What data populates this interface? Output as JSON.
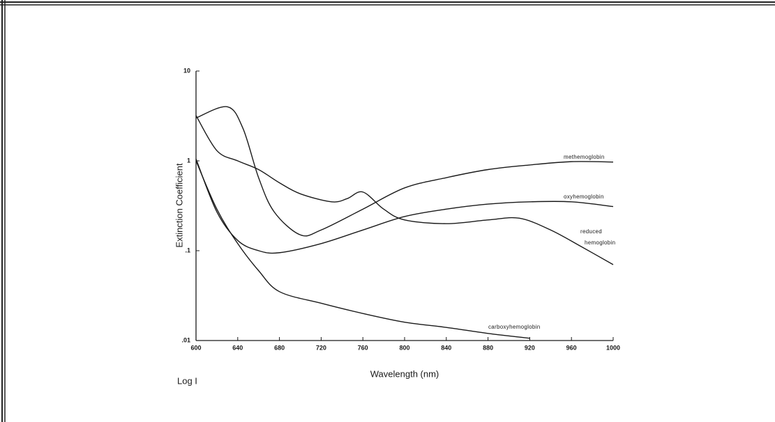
{
  "chart_data": {
    "type": "line",
    "x_label": "Wavelength (nm)",
    "y_label": "Extinction Coefficient",
    "annotation": "Log I",
    "log_y": true,
    "color": "#1a1a1a",
    "xlim": [
      600,
      1000
    ],
    "ylim": [
      0.01,
      10
    ],
    "xticks": [
      600,
      640,
      680,
      720,
      760,
      800,
      840,
      880,
      920,
      960,
      1000
    ],
    "yticks": [
      {
        "value": 0.01,
        "label": ".01"
      },
      {
        "value": 0.1,
        "label": ".1"
      },
      1,
      10
    ],
    "series": [
      {
        "name": "methemoglobin",
        "color": "#1a1a1a",
        "x": [
          600,
          630,
          645,
          660,
          675,
          700,
          720,
          760,
          800,
          840,
          880,
          920,
          960,
          1000
        ],
        "values": [
          3.0,
          4.0,
          2.3,
          0.65,
          0.27,
          0.15,
          0.17,
          0.29,
          0.5,
          0.65,
          0.8,
          0.9,
          0.98,
          0.97
        ]
      },
      {
        "name": "oxyhemoglobin",
        "color": "#1a1a1a",
        "x": [
          600,
          620,
          640,
          660,
          680,
          720,
          760,
          800,
          840,
          880,
          920,
          960,
          1000
        ],
        "values": [
          1.05,
          0.27,
          0.13,
          0.1,
          0.095,
          0.12,
          0.17,
          0.24,
          0.29,
          0.33,
          0.35,
          0.35,
          0.31
        ]
      },
      {
        "name": "reduced hemoglobin",
        "color": "#1a1a1a",
        "x": [
          600,
          620,
          640,
          660,
          680,
          700,
          730,
          745,
          760,
          780,
          800,
          840,
          880,
          910,
          940,
          970,
          1000
        ],
        "values": [
          3.2,
          1.3,
          1.0,
          0.8,
          0.57,
          0.43,
          0.35,
          0.38,
          0.45,
          0.29,
          0.22,
          0.2,
          0.22,
          0.23,
          0.17,
          0.11,
          0.07
        ]
      },
      {
        "name": "carboxyhemoglobin",
        "color": "#1a1a1a",
        "x": [
          600,
          620,
          640,
          660,
          680,
          720,
          760,
          800,
          840,
          880,
          920
        ],
        "values": [
          1.0,
          0.29,
          0.12,
          0.06,
          0.035,
          0.026,
          0.02,
          0.016,
          0.014,
          0.012,
          0.0106
        ]
      }
    ]
  }
}
